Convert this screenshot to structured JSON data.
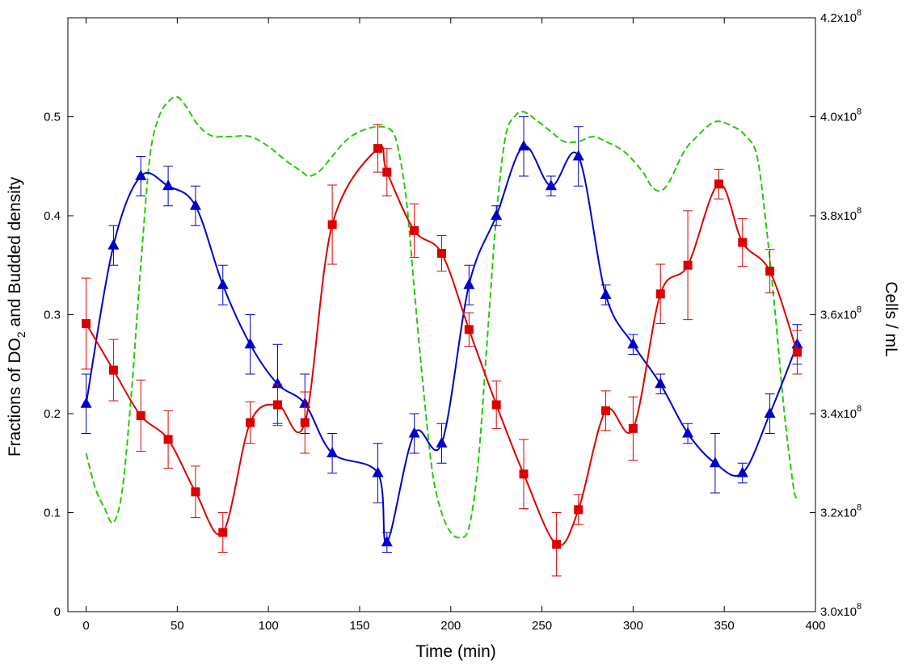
{
  "chart_data": {
    "type": "line",
    "xlabel": "Time (min)",
    "ylabel_left": "Fractions of DO",
    "ylabel_left_sub": "2",
    "ylabel_left_tail": " and Budded density",
    "ylabel_right": "Cells / mL",
    "xlim": [
      -10,
      400
    ],
    "ylim_left": [
      0,
      0.6
    ],
    "ylim_right": [
      3.0,
      4.2
    ],
    "x_ticks": [
      "0",
      "50",
      "100",
      "150",
      "200",
      "250",
      "300",
      "350",
      "400"
    ],
    "y_left_ticks": [
      "0",
      "0.1",
      "0.2",
      "0.3",
      "0.4",
      "0.5"
    ],
    "y_right_ticks": [
      {
        "mantissa": "3.0x10",
        "exp": "8"
      },
      {
        "mantissa": "3.2x10",
        "exp": "8"
      },
      {
        "mantissa": "3.4x10",
        "exp": "8"
      },
      {
        "mantissa": "3.6x10",
        "exp": "8"
      },
      {
        "mantissa": "3.8x10",
        "exp": "8"
      },
      {
        "mantissa": "4.0x10",
        "exp": "8"
      },
      {
        "mantissa": "4.2x10",
        "exp": "8"
      }
    ],
    "grid": false,
    "series": [
      {
        "color": "#0000cc",
        "marker": "triangle",
        "axis": "left",
        "points": [
          {
            "x": 0,
            "y": 0.21,
            "err": 0.03
          },
          {
            "x": 15,
            "y": 0.37,
            "err": 0.02
          },
          {
            "x": 30,
            "y": 0.44,
            "err": 0.02
          },
          {
            "x": 45,
            "y": 0.43,
            "err": 0.02
          },
          {
            "x": 60,
            "y": 0.41,
            "err": 0.02
          },
          {
            "x": 75,
            "y": 0.33,
            "err": 0.02
          },
          {
            "x": 90,
            "y": 0.27,
            "err": 0.03
          },
          {
            "x": 105,
            "y": 0.23,
            "err": 0.04
          },
          {
            "x": 120,
            "y": 0.21,
            "err": 0.03
          },
          {
            "x": 135,
            "y": 0.16,
            "err": 0.02
          },
          {
            "x": 160,
            "y": 0.14,
            "err": 0.03
          },
          {
            "x": 165,
            "y": 0.07,
            "err": 0.01
          },
          {
            "x": 180,
            "y": 0.18,
            "err": 0.02
          },
          {
            "x": 195,
            "y": 0.17,
            "err": 0.02
          },
          {
            "x": 210,
            "y": 0.33,
            "err": 0.02
          },
          {
            "x": 225,
            "y": 0.4,
            "err": 0.01
          },
          {
            "x": 240,
            "y": 0.47,
            "err": 0.03
          },
          {
            "x": 255,
            "y": 0.43,
            "err": 0.01
          },
          {
            "x": 270,
            "y": 0.46,
            "err": 0.03
          },
          {
            "x": 285,
            "y": 0.32,
            "err": 0.01
          },
          {
            "x": 300,
            "y": 0.27,
            "err": 0.01
          },
          {
            "x": 315,
            "y": 0.23,
            "err": 0.01
          },
          {
            "x": 330,
            "y": 0.18,
            "err": 0.01
          },
          {
            "x": 345,
            "y": 0.15,
            "err": 0.03
          },
          {
            "x": 360,
            "y": 0.14,
            "err": 0.01
          },
          {
            "x": 375,
            "y": 0.2,
            "err": 0.02
          },
          {
            "x": 390,
            "y": 0.27,
            "err": 0.02
          }
        ]
      },
      {
        "color": "#dd0000",
        "marker": "square",
        "axis": "left",
        "points": [
          {
            "x": 0,
            "y": 0.291,
            "err": 0.046
          },
          {
            "x": 15,
            "y": 0.244,
            "err": 0.031
          },
          {
            "x": 30,
            "y": 0.198,
            "err": 0.036
          },
          {
            "x": 45,
            "y": 0.174,
            "err": 0.029
          },
          {
            "x": 60,
            "y": 0.121,
            "err": 0.026
          },
          {
            "x": 75,
            "y": 0.08,
            "err": 0.02
          },
          {
            "x": 90,
            "y": 0.191,
            "err": 0.021
          },
          {
            "x": 105,
            "y": 0.209,
            "err": 0.021
          },
          {
            "x": 120,
            "y": 0.191,
            "err": 0.031
          },
          {
            "x": 135,
            "y": 0.391,
            "err": 0.04
          },
          {
            "x": 160,
            "y": 0.468,
            "err": 0.024
          },
          {
            "x": 165,
            "y": 0.444,
            "err": 0.024
          },
          {
            "x": 180,
            "y": 0.385,
            "err": 0.027
          },
          {
            "x": 195,
            "y": 0.362,
            "err": 0.018
          },
          {
            "x": 210,
            "y": 0.285,
            "err": 0.017
          },
          {
            "x": 225,
            "y": 0.209,
            "err": 0.024
          },
          {
            "x": 240,
            "y": 0.139,
            "err": 0.035
          },
          {
            "x": 258,
            "y": 0.068,
            "err": 0.032
          },
          {
            "x": 270,
            "y": 0.103,
            "err": 0.015
          },
          {
            "x": 285,
            "y": 0.203,
            "err": 0.02
          },
          {
            "x": 300,
            "y": 0.185,
            "err": 0.032
          },
          {
            "x": 315,
            "y": 0.321,
            "err": 0.03
          },
          {
            "x": 330,
            "y": 0.35,
            "err": 0.055
          },
          {
            "x": 347,
            "y": 0.432,
            "err": 0.015
          },
          {
            "x": 360,
            "y": 0.373,
            "err": 0.024
          },
          {
            "x": 375,
            "y": 0.344,
            "err": 0.022
          },
          {
            "x": 390,
            "y": 0.262,
            "err": 0.022
          }
        ]
      },
      {
        "color": "#22cc00",
        "style": "dashed",
        "axis": "right",
        "points": [
          {
            "x": 0,
            "y": 3.32
          },
          {
            "x": 5,
            "y": 3.25
          },
          {
            "x": 10,
            "y": 3.21
          },
          {
            "x": 15,
            "y": 3.18
          },
          {
            "x": 20,
            "y": 3.25
          },
          {
            "x": 25,
            "y": 3.45
          },
          {
            "x": 30,
            "y": 3.7
          },
          {
            "x": 35,
            "y": 3.92
          },
          {
            "x": 40,
            "y": 4.0
          },
          {
            "x": 45,
            "y": 4.03
          },
          {
            "x": 50,
            "y": 4.04
          },
          {
            "x": 55,
            "y": 4.02
          },
          {
            "x": 60,
            "y": 3.99
          },
          {
            "x": 65,
            "y": 3.97
          },
          {
            "x": 70,
            "y": 3.96
          },
          {
            "x": 75,
            "y": 3.96
          },
          {
            "x": 80,
            "y": 3.96
          },
          {
            "x": 90,
            "y": 3.96
          },
          {
            "x": 100,
            "y": 3.94
          },
          {
            "x": 110,
            "y": 3.91
          },
          {
            "x": 118,
            "y": 3.89
          },
          {
            "x": 122,
            "y": 3.88
          },
          {
            "x": 128,
            "y": 3.89
          },
          {
            "x": 135,
            "y": 3.92
          },
          {
            "x": 142,
            "y": 3.95
          },
          {
            "x": 150,
            "y": 3.97
          },
          {
            "x": 160,
            "y": 3.98
          },
          {
            "x": 168,
            "y": 3.97
          },
          {
            "x": 172,
            "y": 3.92
          },
          {
            "x": 176,
            "y": 3.82
          },
          {
            "x": 180,
            "y": 3.65
          },
          {
            "x": 185,
            "y": 3.45
          },
          {
            "x": 190,
            "y": 3.28
          },
          {
            "x": 195,
            "y": 3.2
          },
          {
            "x": 200,
            "y": 3.16
          },
          {
            "x": 205,
            "y": 3.15
          },
          {
            "x": 210,
            "y": 3.17
          },
          {
            "x": 215,
            "y": 3.3
          },
          {
            "x": 220,
            "y": 3.55
          },
          {
            "x": 225,
            "y": 3.8
          },
          {
            "x": 230,
            "y": 3.96
          },
          {
            "x": 235,
            "y": 4.0
          },
          {
            "x": 240,
            "y": 4.01
          },
          {
            "x": 248,
            "y": 3.99
          },
          {
            "x": 255,
            "y": 3.97
          },
          {
            "x": 262,
            "y": 3.95
          },
          {
            "x": 270,
            "y": 3.95
          },
          {
            "x": 278,
            "y": 3.96
          },
          {
            "x": 285,
            "y": 3.95
          },
          {
            "x": 295,
            "y": 3.93
          },
          {
            "x": 305,
            "y": 3.89
          },
          {
            "x": 310,
            "y": 3.86
          },
          {
            "x": 315,
            "y": 3.85
          },
          {
            "x": 320,
            "y": 3.87
          },
          {
            "x": 328,
            "y": 3.93
          },
          {
            "x": 335,
            "y": 3.96
          },
          {
            "x": 345,
            "y": 3.99
          },
          {
            "x": 355,
            "y": 3.98
          },
          {
            "x": 362,
            "y": 3.96
          },
          {
            "x": 368,
            "y": 3.92
          },
          {
            "x": 373,
            "y": 3.78
          },
          {
            "x": 378,
            "y": 3.6
          },
          {
            "x": 383,
            "y": 3.4
          },
          {
            "x": 388,
            "y": 3.25
          },
          {
            "x": 390,
            "y": 3.23
          }
        ]
      }
    ]
  }
}
